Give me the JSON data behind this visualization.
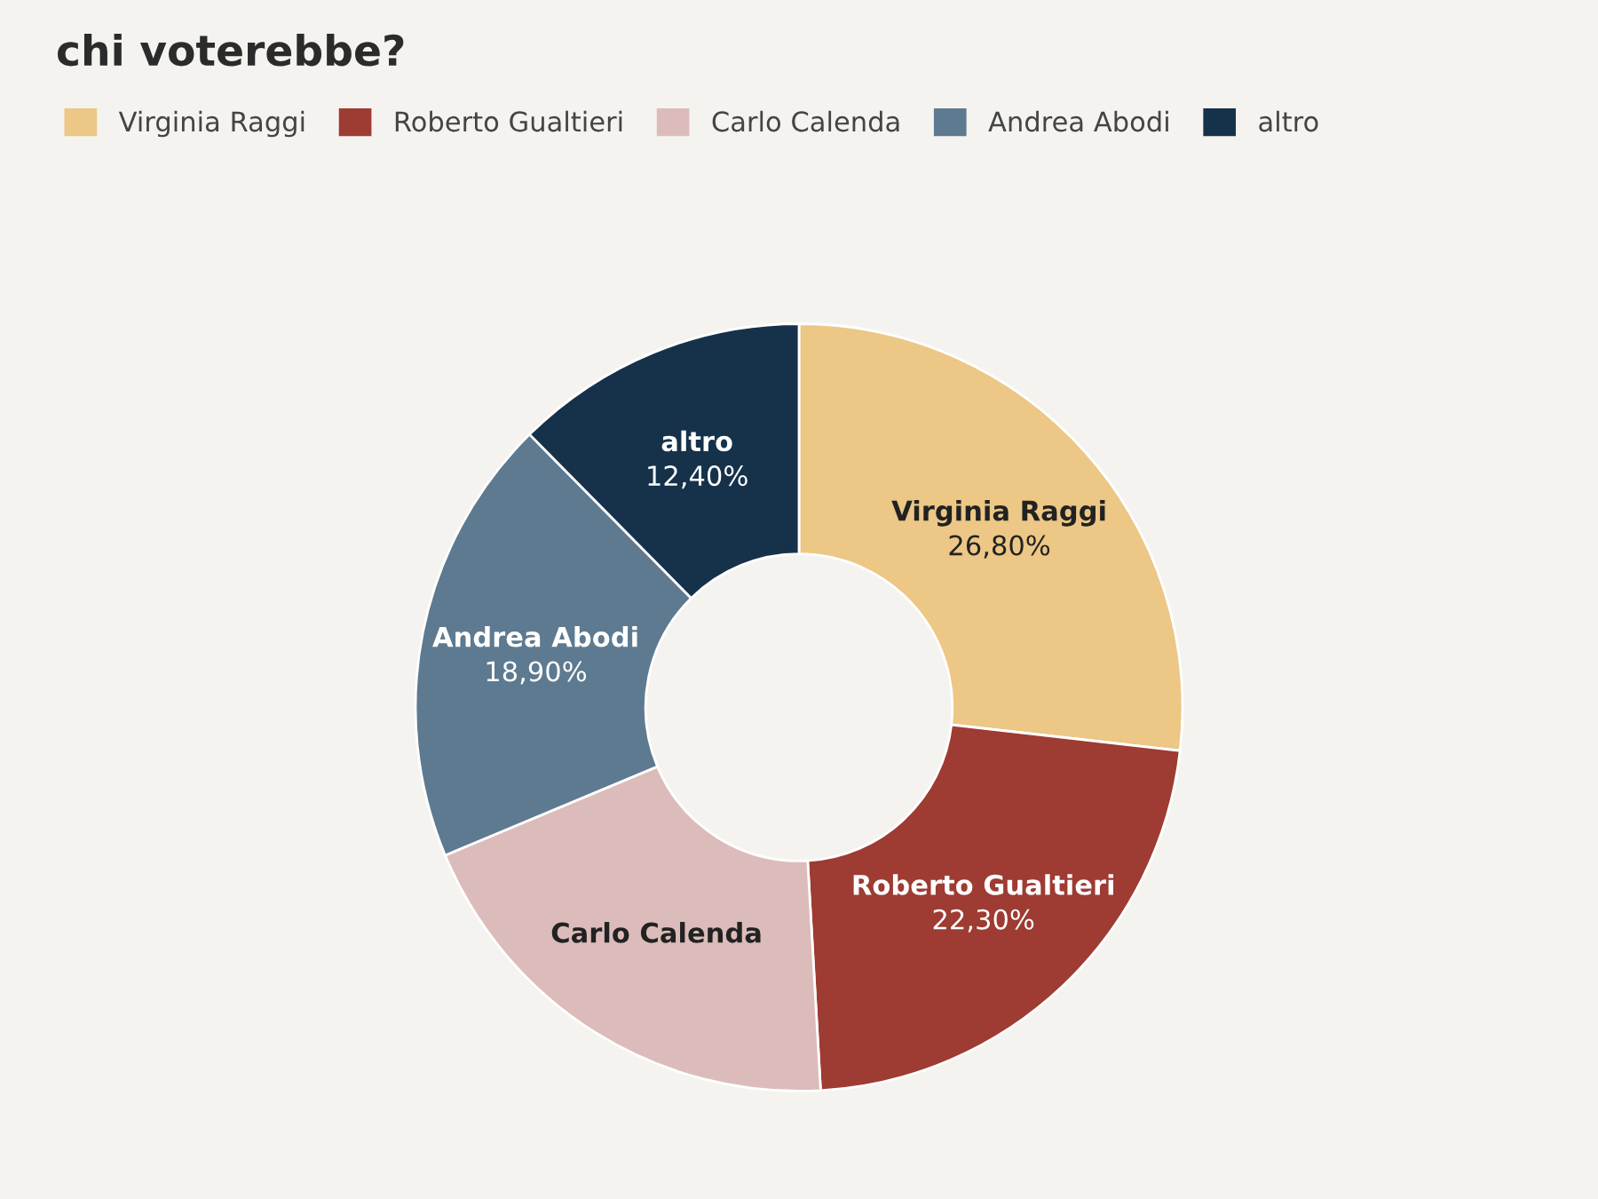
{
  "chart_data": {
    "type": "donut",
    "title": "chi voterebbe?",
    "categories": [
      "Virginia Raggi",
      "Roberto Gualtieri",
      "Carlo Calenda",
      "Andrea Abodi",
      "altro"
    ],
    "values": [
      26.8,
      22.3,
      19.6,
      18.9,
      12.4
    ],
    "colors": [
      "#ecc785",
      "#9e3b32",
      "#dcbcba",
      "#5e7a90",
      "#16324a"
    ],
    "value_labels": [
      "26,80%",
      "22,30%",
      null,
      "18,90%",
      "12,40%"
    ],
    "legend": "top"
  }
}
